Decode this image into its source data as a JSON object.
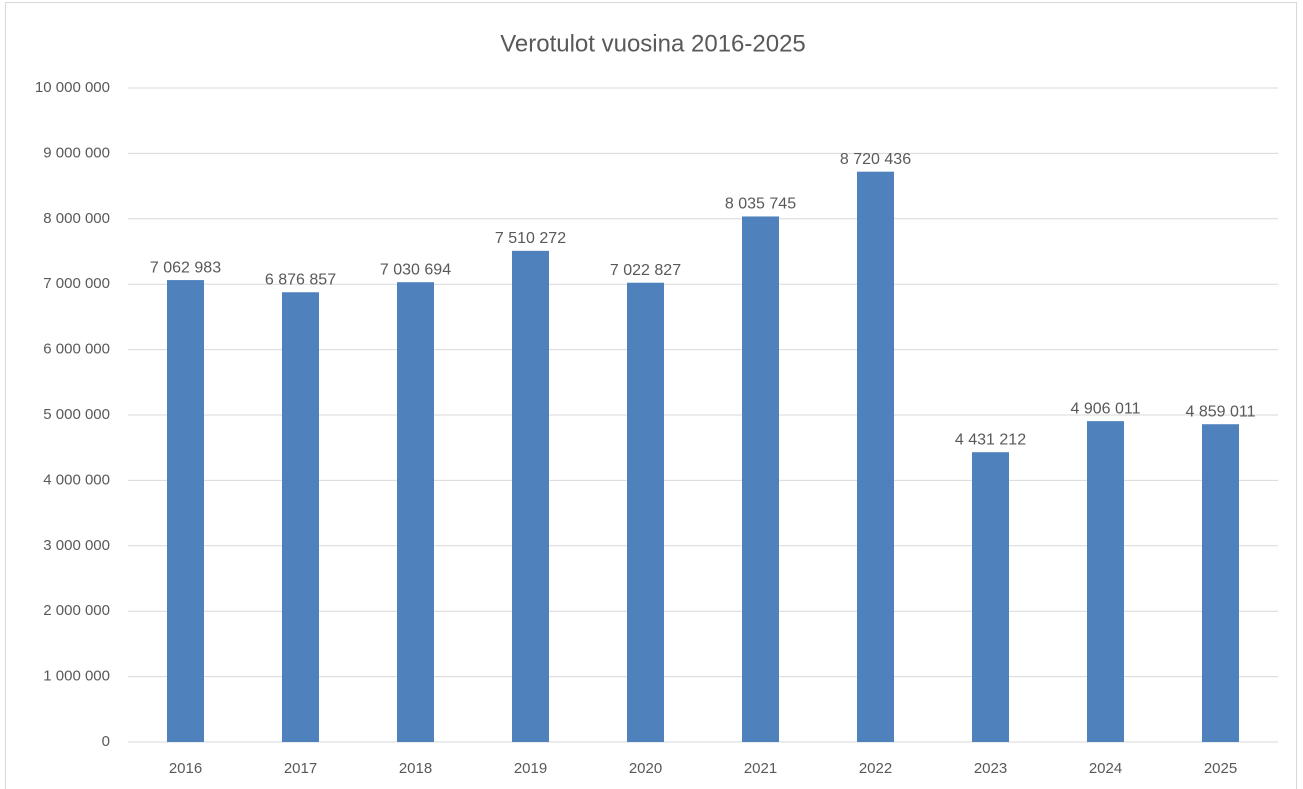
{
  "chart_data": {
    "type": "bar",
    "title": "Verotulot vuosina 2016-2025",
    "categories": [
      "2016",
      "2017",
      "2018",
      "2019",
      "2020",
      "2021",
      "2022",
      "2023",
      "2024",
      "2025"
    ],
    "values": [
      7062983,
      6876857,
      7030694,
      7510272,
      7022827,
      8035745,
      8720436,
      4431212,
      4906011,
      4859011
    ],
    "value_labels": [
      "7 062 983",
      "6 876 857",
      "7 030 694",
      "7 510 272",
      "7 022 827",
      "8 035 745",
      "8 720 436",
      "4 431 212",
      "4 906 011",
      "4 859 011"
    ],
    "color": "#4f81bd",
    "ylim": [
      0,
      10000000
    ],
    "yticks": [
      0,
      {
        "value": 1000000,
        "label": "1 000 000"
      },
      {
        "value": 2000000,
        "label": "2 000 000"
      },
      {
        "value": 3000000,
        "label": "3 000 000"
      },
      {
        "value": 4000000,
        "label": "4 000 000"
      },
      {
        "value": 5000000,
        "label": "5 000 000"
      },
      {
        "value": 6000000,
        "label": "6 000 000"
      },
      {
        "value": 7000000,
        "label": "7 000 000"
      },
      {
        "value": 8000000,
        "label": "8 000 000"
      },
      {
        "value": 9000000,
        "label": "9 000 000"
      },
      {
        "value": 10000000,
        "label": "10 000 000"
      }
    ],
    "grid": true
  }
}
